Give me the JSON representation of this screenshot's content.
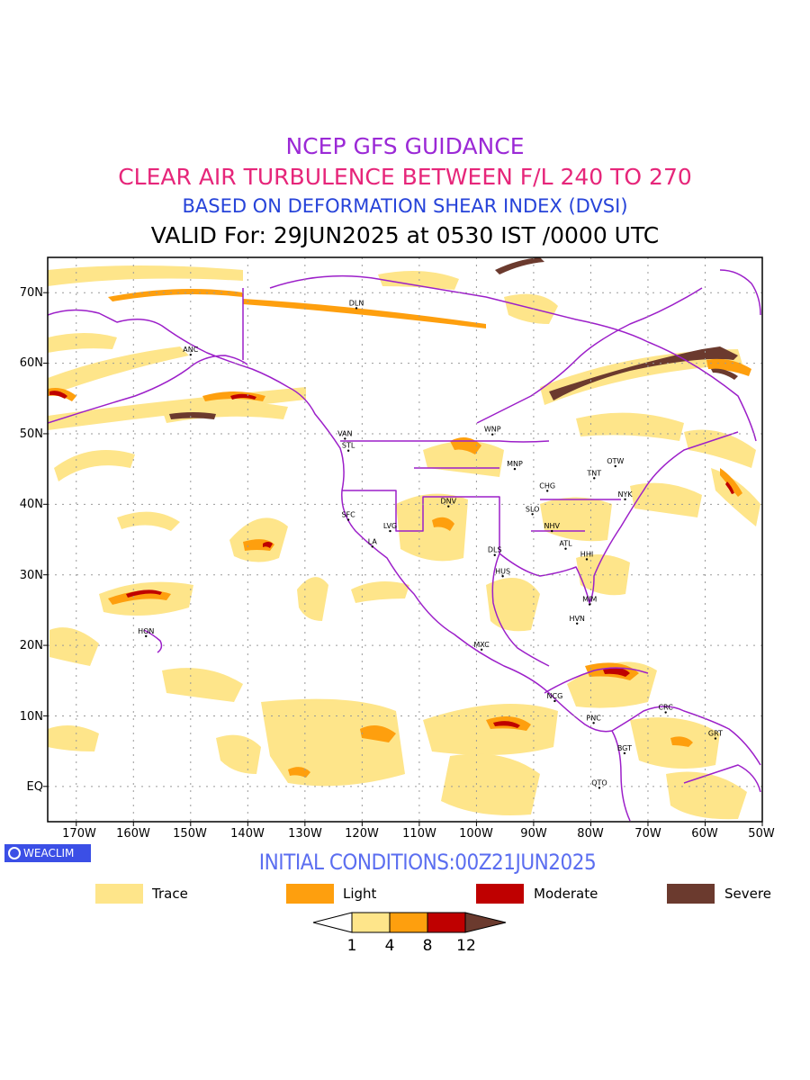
{
  "titles": {
    "line1": {
      "text": "NCEP GFS GUIDANCE",
      "color": "#9b29d6"
    },
    "line2": {
      "text": "CLEAR AIR TURBULENCE BETWEEN F/L 240 TO 270",
      "color": "#e6267a"
    },
    "line3": {
      "text": "BASED ON DEFORMATION SHEAR INDEX (DVSI)",
      "color": "#2643d9"
    },
    "line4": {
      "text": "VALID For: 29JUN2025 at 0530 IST /0000 UTC"
    }
  },
  "axes": {
    "lat_labels": [
      "70N",
      "60N",
      "50N",
      "40N",
      "30N",
      "20N",
      "10N",
      "EQ"
    ],
    "lon_labels": [
      "170W",
      "160W",
      "150W",
      "140W",
      "130W",
      "120W",
      "110W",
      "100W",
      "90W",
      "80W",
      "70W",
      "60W",
      "50W"
    ],
    "lat_range": [
      -5,
      75
    ],
    "lon_range": [
      -175,
      -50
    ]
  },
  "stations": [
    {
      "name": "ANC",
      "lon": -150,
      "lat": 61.2
    },
    {
      "name": "DLN",
      "lon": -121,
      "lat": 67.8
    },
    {
      "name": "VAN",
      "lon": -123,
      "lat": 49.3
    },
    {
      "name": "STL",
      "lon": -122.4,
      "lat": 47.6
    },
    {
      "name": "WNP",
      "lon": -97.2,
      "lat": 49.9
    },
    {
      "name": "MNP",
      "lon": -93.3,
      "lat": 45.0
    },
    {
      "name": "OTW",
      "lon": -75.7,
      "lat": 45.4
    },
    {
      "name": "TNT",
      "lon": -79.4,
      "lat": 43.7
    },
    {
      "name": "CHG",
      "lon": -87.6,
      "lat": 41.9
    },
    {
      "name": "NYK",
      "lon": -74.0,
      "lat": 40.7
    },
    {
      "name": "DNV",
      "lon": -104.9,
      "lat": 39.7
    },
    {
      "name": "SFC",
      "lon": -122.4,
      "lat": 37.8
    },
    {
      "name": "SLO",
      "lon": -90.2,
      "lat": 38.6
    },
    {
      "name": "LVG",
      "lon": -115.1,
      "lat": 36.2
    },
    {
      "name": "NHV",
      "lon": -86.8,
      "lat": 36.2
    },
    {
      "name": "LA",
      "lon": -118.2,
      "lat": 34.0
    },
    {
      "name": "ATL",
      "lon": -84.4,
      "lat": 33.7
    },
    {
      "name": "DLS",
      "lon": -96.8,
      "lat": 32.8
    },
    {
      "name": "HHI",
      "lon": -80.7,
      "lat": 32.2
    },
    {
      "name": "HUS",
      "lon": -95.4,
      "lat": 29.8
    },
    {
      "name": "MIM",
      "lon": -80.2,
      "lat": 25.8
    },
    {
      "name": "HVN",
      "lon": -82.4,
      "lat": 23.1
    },
    {
      "name": "HON",
      "lon": -157.8,
      "lat": 21.3
    },
    {
      "name": "MXC",
      "lon": -99.1,
      "lat": 19.4
    },
    {
      "name": "NCG",
      "lon": -86.3,
      "lat": 12.1
    },
    {
      "name": "CRC",
      "lon": -66.9,
      "lat": 10.5
    },
    {
      "name": "PNC",
      "lon": -79.5,
      "lat": 9.0
    },
    {
      "name": "GRT",
      "lon": -58.2,
      "lat": 6.8
    },
    {
      "name": "BGT",
      "lon": -74.1,
      "lat": 4.7
    },
    {
      "name": "QTO",
      "lon": -78.5,
      "lat": -0.2
    }
  ],
  "badge": {
    "label": "WEACLIM"
  },
  "initial_conditions": {
    "text": "INITIAL CONDITIONS:00Z21JUN2025",
    "color": "#5b6ef0"
  },
  "legend": [
    {
      "label": "Trace",
      "color": "#fee58a"
    },
    {
      "label": "Light",
      "color": "#fe9f0e"
    },
    {
      "label": "Moderate",
      "color": "#bf0000"
    },
    {
      "label": "Severe",
      "color": "#6b3a2e"
    }
  ],
  "colorbar": {
    "ticks": [
      "1",
      "4",
      "8",
      "12"
    ]
  },
  "colors": {
    "trace": "#fee58a",
    "light": "#fe9f0e",
    "moderate": "#bf0000",
    "severe": "#6b3a2e",
    "coast": "#9c1fc9",
    "grid": "#9a9a9a"
  }
}
